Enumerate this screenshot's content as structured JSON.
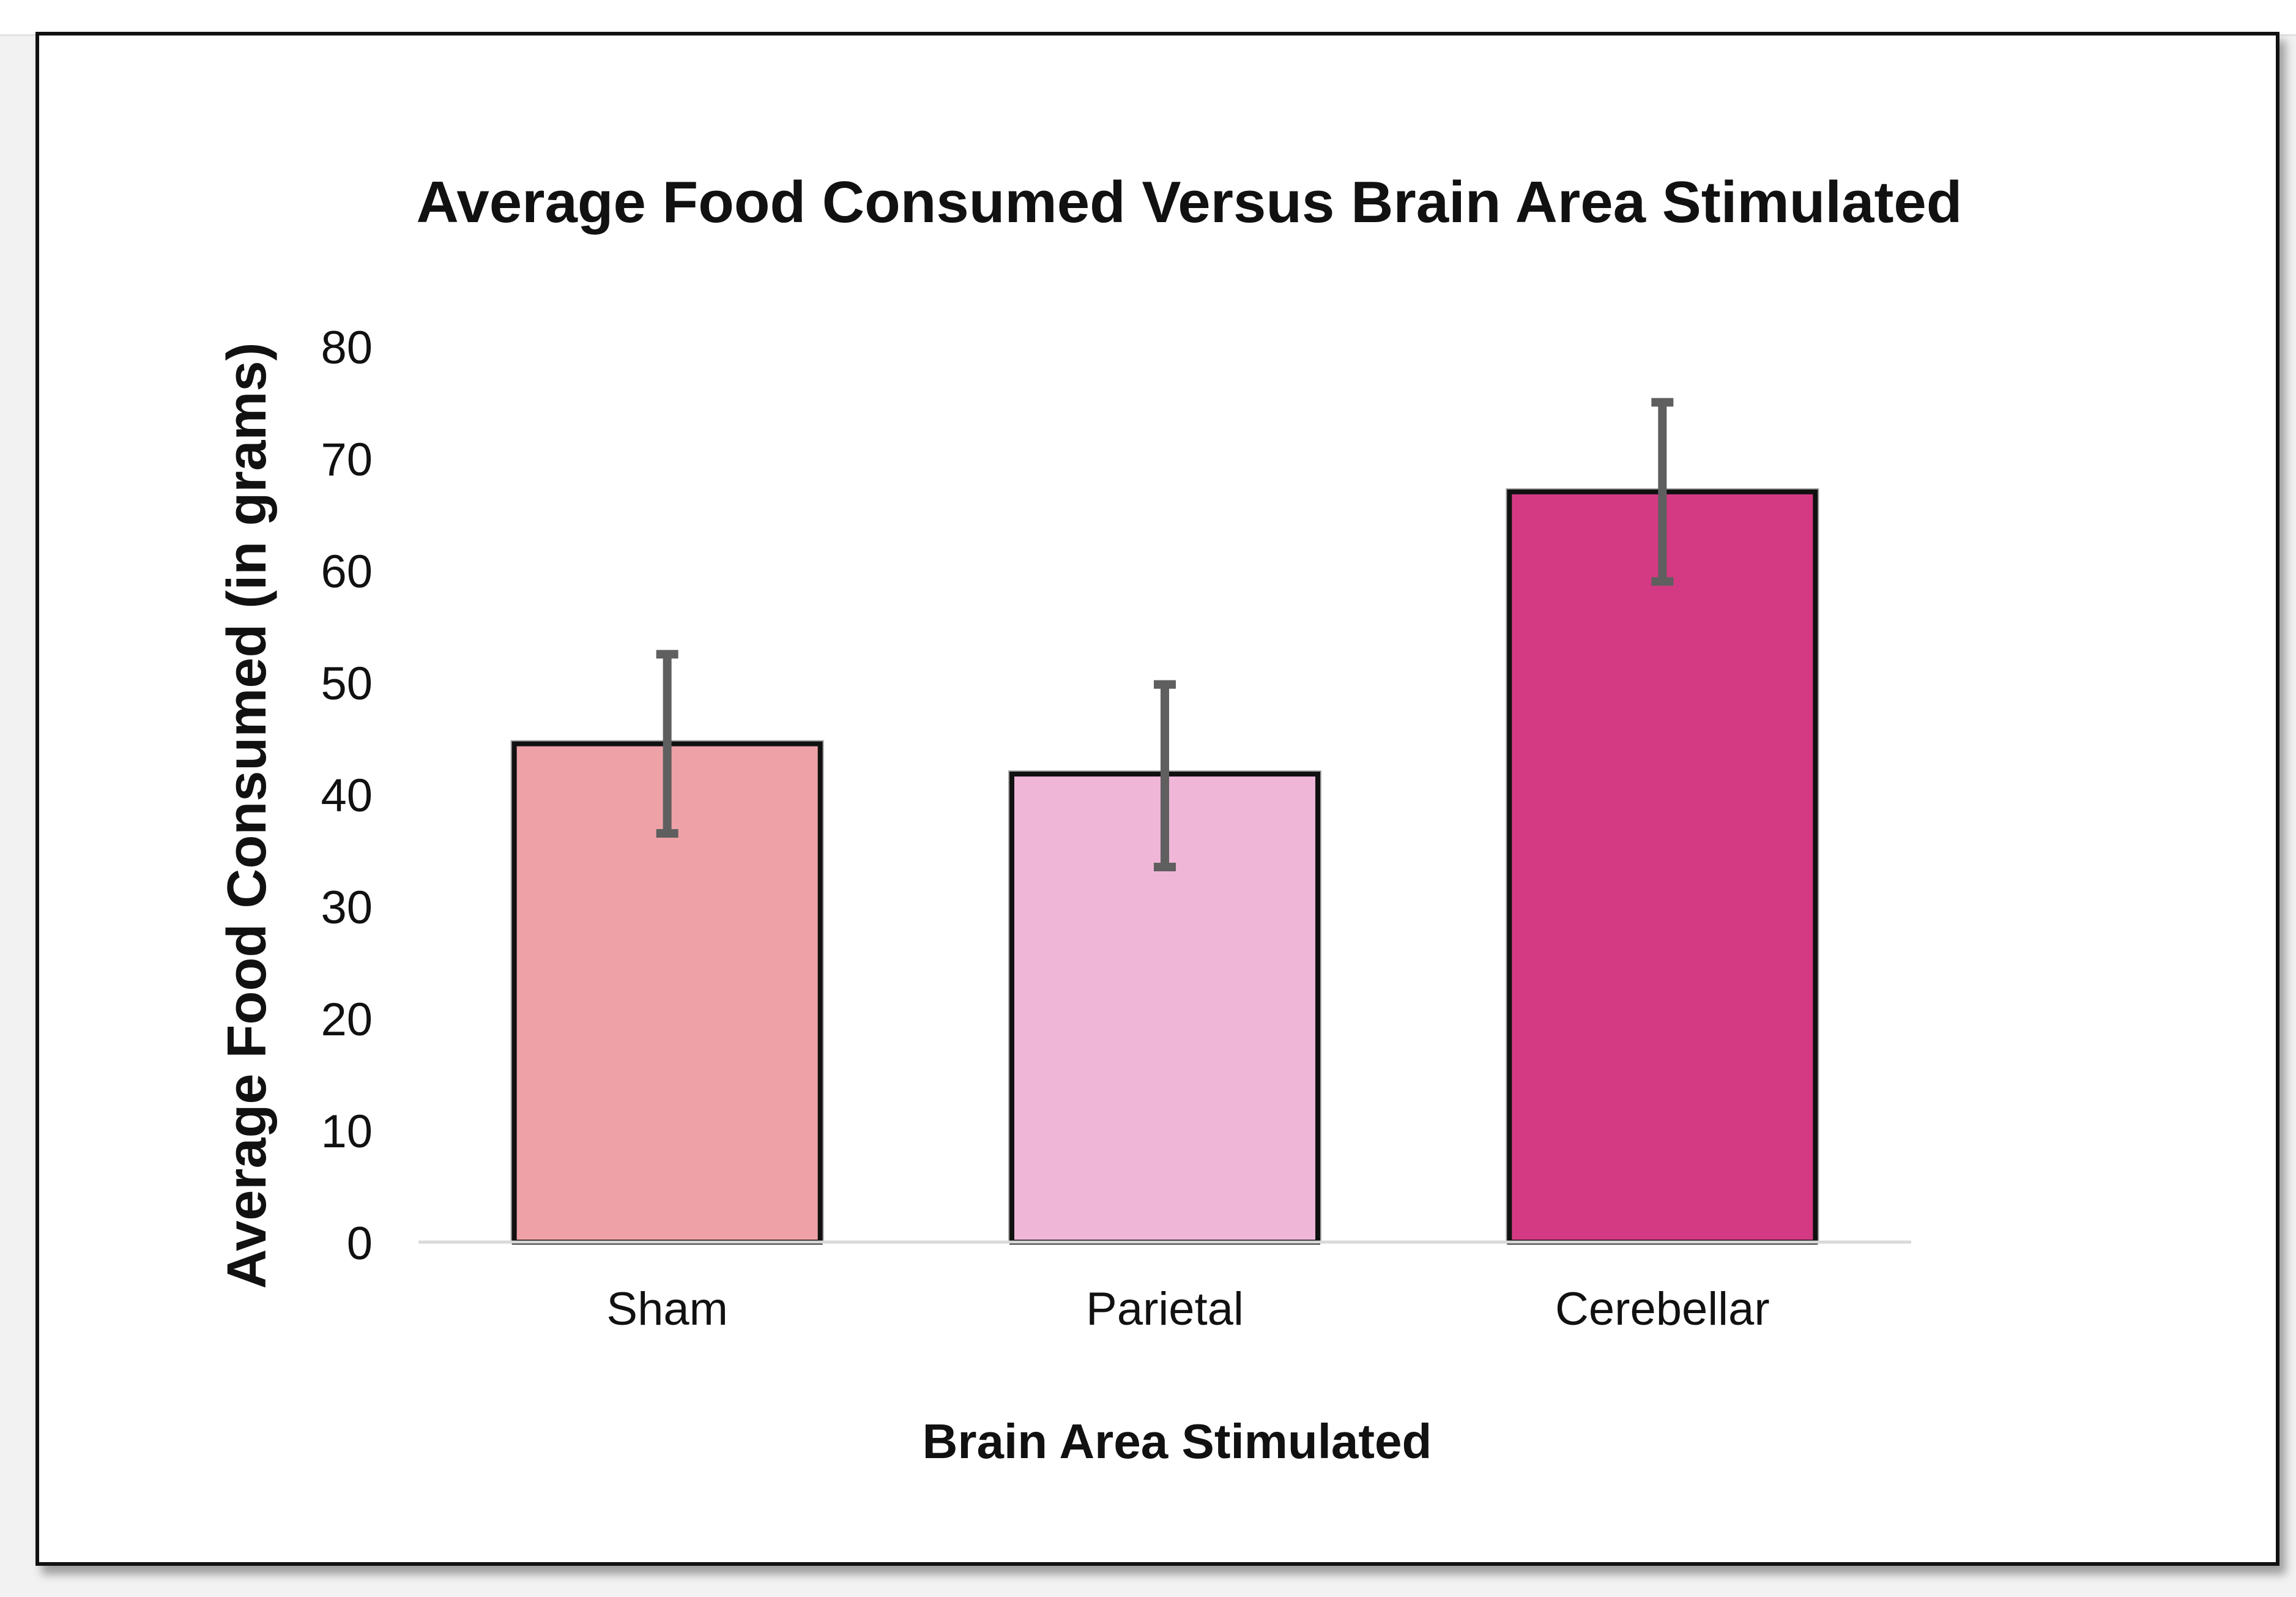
{
  "chart_data": {
    "type": "bar",
    "title": "Average Food Consumed Versus Brain Area Stimulated",
    "xlabel": "Brain Area Stimulated",
    "ylabel": "Average Food Consumed (in grams)",
    "categories": [
      "Sham",
      "Parietal",
      "Cerebellar"
    ],
    "values": [
      44.5,
      41.8,
      67
    ],
    "error_low": [
      36.5,
      33.5,
      59
    ],
    "error_high": [
      52.5,
      49.8,
      75
    ],
    "ylim": [
      0,
      80
    ],
    "yticks": [
      "0",
      "10",
      "20",
      "30",
      "40",
      "50",
      "60",
      "70",
      "80"
    ],
    "grid": false,
    "legend": "none",
    "colors": [
      "#eea2a7",
      "#efb6d7",
      "#d43a83"
    ],
    "error_bar_color": "#5f5f5f",
    "bar_edge_color": "#111111"
  }
}
